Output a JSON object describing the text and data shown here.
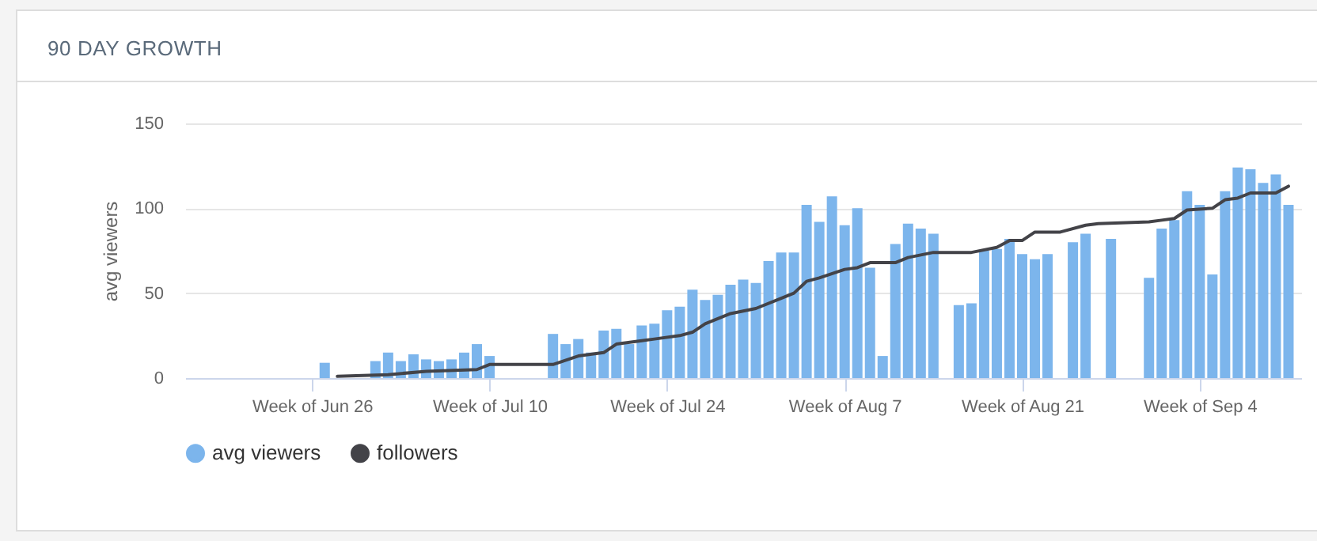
{
  "chart_data": {
    "type": "bar",
    "title": "90 DAY GROWTH",
    "ylabel": "avg viewers",
    "xlim": [
      "--06-16",
      "--09-12"
    ],
    "xticks": [
      {
        "value": "--06-26",
        "label": "Week of Jun 26"
      },
      {
        "value": "--07-10",
        "label": "Week of Jul 10"
      },
      {
        "value": "--07-24",
        "label": "Week of Jul 24"
      },
      {
        "value": "--08-07",
        "label": "Week of Aug 7"
      },
      {
        "value": "--08-21",
        "label": "Week of Aug 21"
      },
      {
        "value": "--09-04",
        "label": "Week of Sep 4"
      }
    ],
    "ylim": [
      0,
      150
    ],
    "yticks": [
      0,
      50,
      100,
      150
    ],
    "grid": "y",
    "legend": "bottom",
    "series": [
      {
        "name": "avg viewers",
        "color": "#7cb5ec",
        "x": [
          "--06-27",
          "--07-01",
          "--07-02",
          "--07-03",
          "--07-04",
          "--07-05",
          "--07-06",
          "--07-07",
          "--07-08",
          "--07-09",
          "--07-10",
          "--07-15",
          "--07-16",
          "--07-17",
          "--07-18",
          "--07-19",
          "--07-20",
          "--07-21",
          "--07-22",
          "--07-23",
          "--07-24",
          "--07-25",
          "--07-26",
          "--07-27",
          "--07-28",
          "--07-29",
          "--07-30",
          "--07-31",
          "--08-01",
          "--08-02",
          "--08-03",
          "--08-04",
          "--08-05",
          "--08-06",
          "--08-07",
          "--08-08",
          "--08-09",
          "--08-10",
          "--08-11",
          "--08-12",
          "--08-13",
          "--08-14",
          "--08-16",
          "--08-17",
          "--08-18",
          "--08-19",
          "--08-20",
          "--08-21",
          "--08-22",
          "--08-23",
          "--08-25",
          "--08-26",
          "--08-28",
          "--08-31",
          "--09-01",
          "--09-02",
          "--09-03",
          "--09-04",
          "--09-05",
          "--09-06",
          "--09-07",
          "--09-08",
          "--09-09",
          "--09-10",
          "--09-11"
        ],
        "values": [
          9,
          10,
          15,
          10,
          14,
          11,
          10,
          11,
          15,
          20,
          13,
          26,
          20,
          23,
          15,
          28,
          29,
          20,
          31,
          32,
          40,
          42,
          52,
          46,
          49,
          55,
          58,
          56,
          69,
          74,
          74,
          102,
          92,
          107,
          90,
          100,
          65,
          13,
          79,
          91,
          88,
          85,
          43,
          44,
          75,
          76,
          82,
          73,
          70,
          73,
          80,
          85,
          82,
          59,
          88,
          93,
          110,
          102,
          61,
          110,
          124,
          123,
          115,
          120,
          102
        ]
      },
      {
        "name": "followers",
        "type": "line",
        "color": "#434348",
        "x": [
          "--06-28",
          "--07-02",
          "--07-05",
          "--07-09",
          "--07-10",
          "--07-15",
          "--07-17",
          "--07-19",
          "--07-20",
          "--07-22",
          "--07-23",
          "--07-25",
          "--07-26",
          "--07-27",
          "--07-29",
          "--07-31",
          "--08-02",
          "--08-03",
          "--08-04",
          "--08-05",
          "--08-07",
          "--08-08",
          "--08-09",
          "--08-11",
          "--08-12",
          "--08-14",
          "--08-17",
          "--08-19",
          "--08-20",
          "--08-21",
          "--08-22",
          "--08-24",
          "--08-26",
          "--08-27",
          "--08-31",
          "--09-01",
          "--09-02",
          "--09-03",
          "--09-05",
          "--09-06",
          "--09-07",
          "--09-08",
          "--09-10",
          "--09-11"
        ],
        "values": [
          1,
          2,
          4,
          5,
          8,
          8,
          13,
          15,
          20,
          22,
          23,
          25,
          27,
          32,
          38,
          41,
          47,
          50,
          57,
          59,
          64,
          65,
          68,
          68,
          71,
          74,
          74,
          77,
          81,
          81,
          86,
          86,
          90,
          91,
          92,
          93,
          94,
          99,
          100,
          105,
          106,
          109,
          109,
          113
        ]
      }
    ]
  }
}
